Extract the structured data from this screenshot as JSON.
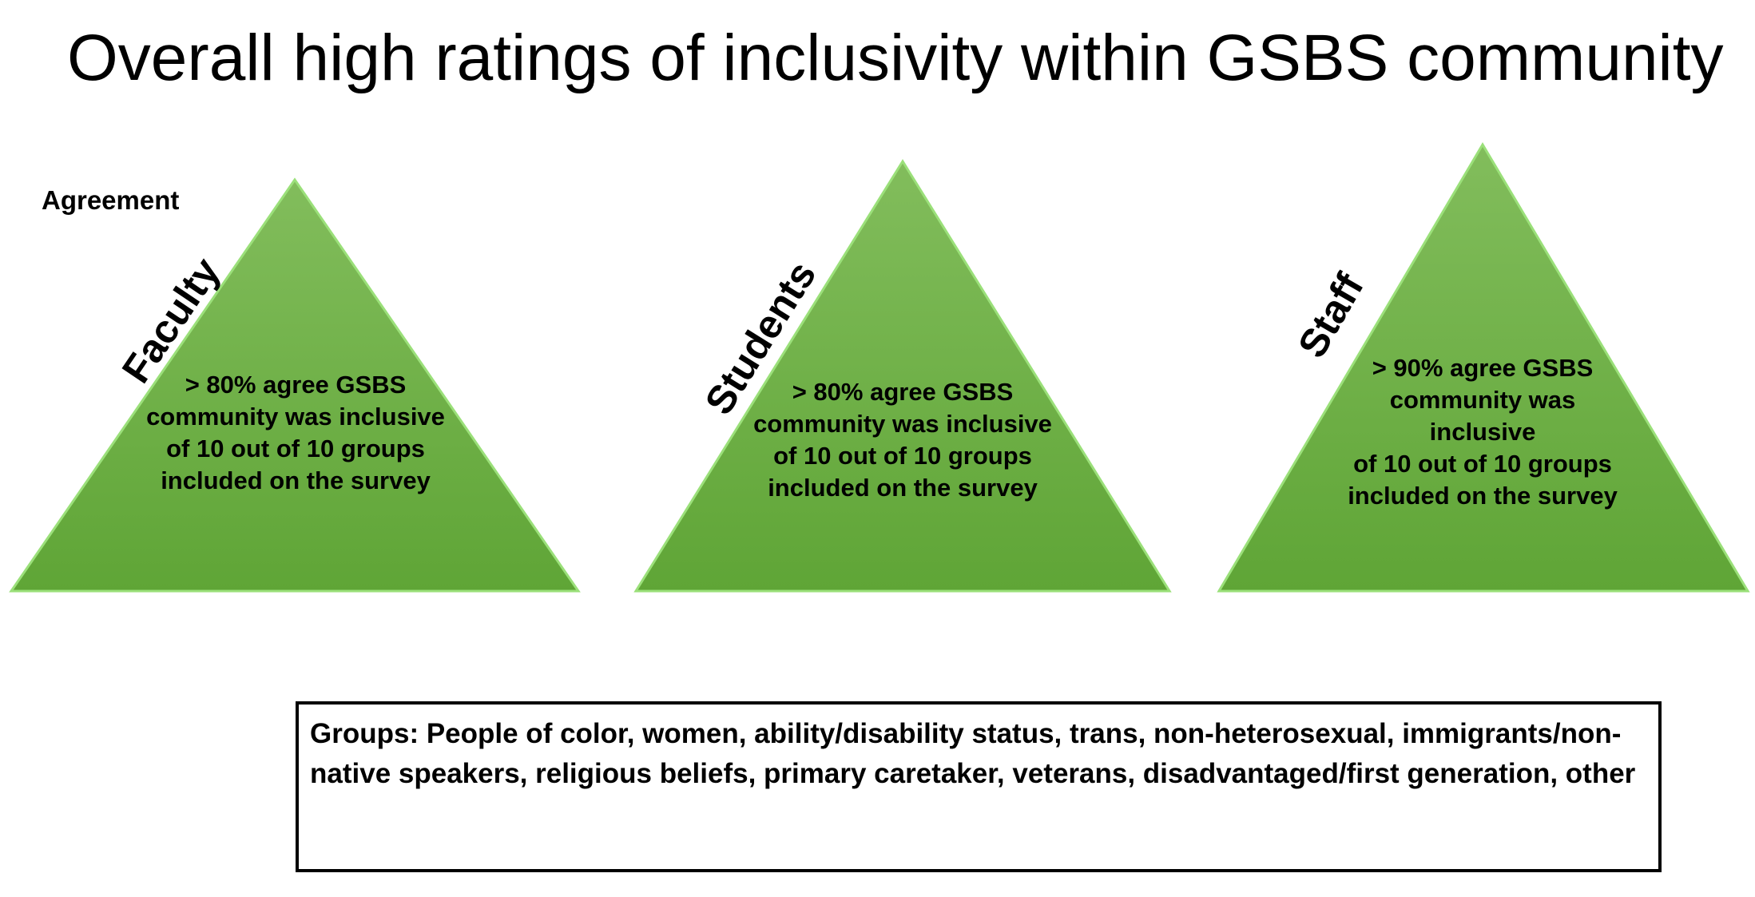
{
  "title": "Overall high ratings of inclusivity within GSBS community",
  "subheading": "Agreement",
  "colors": {
    "triangle_top": "#82bd5c",
    "triangle_bottom": "#5fa536",
    "triangle_edge": "#9be07a"
  },
  "triangles": [
    {
      "label": "Faculty",
      "text": "> 80% agree GSBS\ncommunity was inclusive\nof 10 out of 10 groups\nincluded on the survey"
    },
    {
      "label": "Students",
      "text": "> 80% agree GSBS\ncommunity was inclusive\nof 10 out of 10 groups\nincluded on the survey"
    },
    {
      "label": "Staff",
      "text": "> 90% agree GSBS\ncommunity was\ninclusive\nof 10 out of 10 groups\nincluded on the survey"
    }
  ],
  "groups_note": "Groups: People of color, women, ability/disability status, trans, non-heterosexual, immigrants/non-native speakers, religious beliefs, primary caretaker, veterans, disadvantaged/first generation, other"
}
